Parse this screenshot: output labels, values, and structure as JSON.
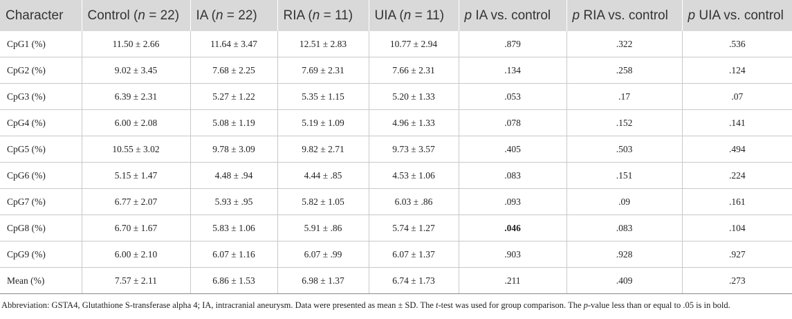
{
  "header": {
    "character": "Character",
    "control_label": "Control (",
    "control_n": "n",
    "control_eq": " = 22)",
    "ia_label": "IA (",
    "ia_n": "n",
    "ia_eq": " = 22)",
    "ria_label": "RIA (",
    "ria_n": "n",
    "ria_eq": " = 11)",
    "uia_label": "UIA (",
    "uia_n": "n",
    "uia_eq": " = 11)",
    "p_ia_p": "p",
    "p_ia_text": " IA vs. control",
    "p_ria_p": "p",
    "p_ria_text": " RIA vs. control",
    "p_uia_p": "p",
    "p_uia_text": " UIA vs. control"
  },
  "rows": [
    {
      "label": "CpG1 (%)",
      "control": "11.50 ± 2.66",
      "ia": "11.64 ± 3.47",
      "ria": "12.51 ± 2.83",
      "uia": "10.77 ± 2.94",
      "p_ia": ".879",
      "p_ria": ".322",
      "p_uia": ".536"
    },
    {
      "label": "CpG2 (%)",
      "control": "9.02 ± 3.45",
      "ia": "7.68 ± 2.25",
      "ria": "7.69 ± 2.31",
      "uia": "7.66 ± 2.31",
      "p_ia": ".134",
      "p_ria": ".258",
      "p_uia": ".124"
    },
    {
      "label": "CpG3 (%)",
      "control": "6.39 ± 2.31",
      "ia": "5.27 ± 1.22",
      "ria": "5.35 ± 1.15",
      "uia": "5.20 ± 1.33",
      "p_ia": ".053",
      "p_ria": ".17",
      "p_uia": ".07"
    },
    {
      "label": "CpG4 (%)",
      "control": "6.00 ± 2.08",
      "ia": "5.08 ± 1.19",
      "ria": "5.19 ± 1.09",
      "uia": "4.96 ± 1.33",
      "p_ia": ".078",
      "p_ria": ".152",
      "p_uia": ".141"
    },
    {
      "label": "CpG5 (%)",
      "control": "10.55 ± 3.02",
      "ia": "9.78 ± 3.09",
      "ria": "9.82 ± 2.71",
      "uia": "9.73 ± 3.57",
      "p_ia": ".405",
      "p_ria": ".503",
      "p_uia": ".494"
    },
    {
      "label": "CpG6 (%)",
      "control": "5.15 ± 1.47",
      "ia": "4.48 ± .94",
      "ria": "4.44 ± .85",
      "uia": "4.53 ± 1.06",
      "p_ia": ".083",
      "p_ria": ".151",
      "p_uia": ".224"
    },
    {
      "label": "CpG7 (%)",
      "control": "6.77 ± 2.07",
      "ia": "5.93 ± .95",
      "ria": "5.82 ± 1.05",
      "uia": "6.03 ± .86",
      "p_ia": ".093",
      "p_ria": ".09",
      "p_uia": ".161"
    },
    {
      "label": "CpG8 (%)",
      "control": "6.70 ± 1.67",
      "ia": "5.83 ± 1.06",
      "ria": "5.91 ± .86",
      "uia": "5.74 ± 1.27",
      "p_ia": ".046",
      "p_ria": ".083",
      "p_uia": ".104",
      "bold": [
        "p_ia"
      ]
    },
    {
      "label": "CpG9 (%)",
      "control": "6.00 ± 2.10",
      "ia": "6.07 ± 1.16",
      "ria": "6.07 ± .99",
      "uia": "6.07 ± 1.37",
      "p_ia": ".903",
      "p_ria": ".928",
      "p_uia": ".927"
    },
    {
      "label": "Mean (%)",
      "control": "7.57 ± 2.11",
      "ia": "6.86 ± 1.53",
      "ria": "6.98 ± 1.37",
      "uia": "6.74 ± 1.73",
      "p_ia": ".211",
      "p_ria": ".409",
      "p_uia": ".273"
    }
  ],
  "footnote": {
    "part1": "Abbreviation: GSTA4, Glutathione S-transferase alpha 4; IA, intracranial aneurysm. Data were presented as mean ± SD. The ",
    "t": "t",
    "part2": "-test was used for group comparison. The ",
    "p": "p",
    "part3": "-value less than or equal to .05 is in bold."
  }
}
